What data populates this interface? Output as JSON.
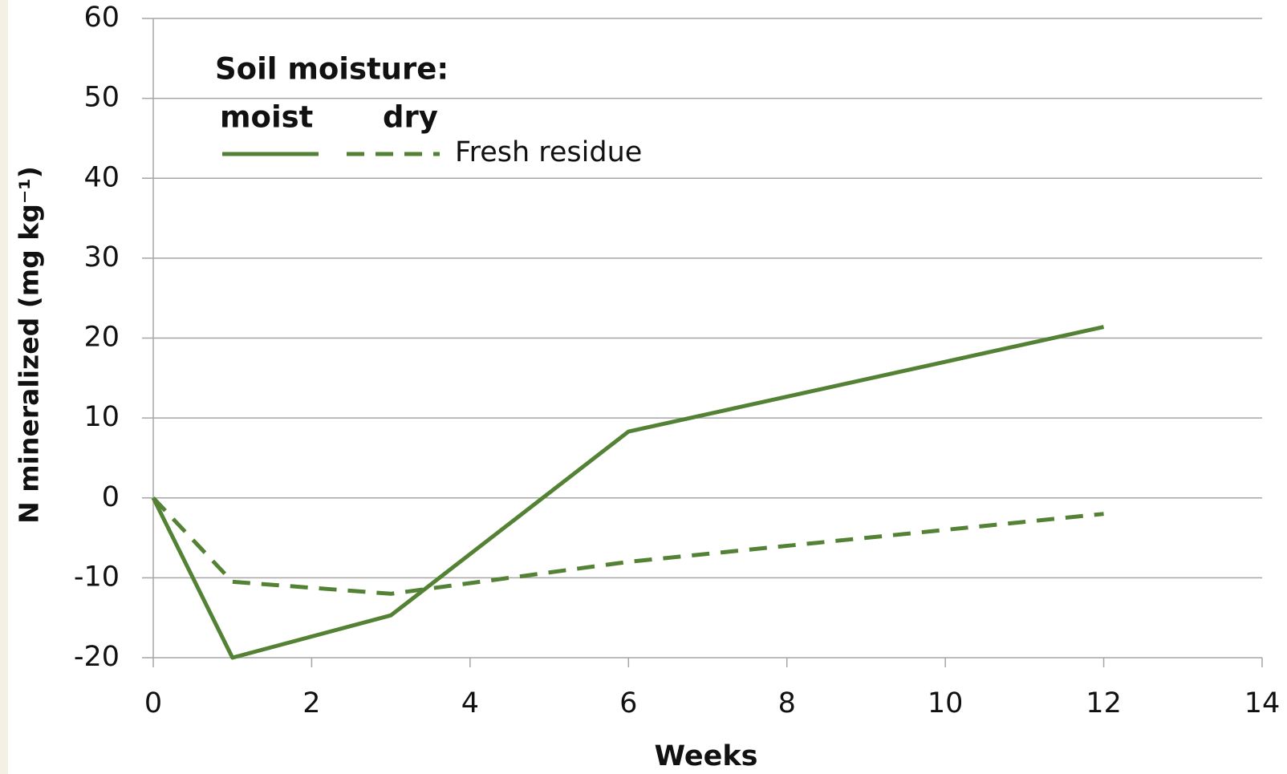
{
  "chart_data": {
    "type": "line",
    "xlabel": "Weeks",
    "ylabel": "N mineralized (mg kg⁻¹)",
    "legend_title": "Soil moisture:",
    "legend_row_label": "Fresh residue",
    "series": [
      {
        "name": "moist",
        "color": "#548235",
        "dash": false,
        "x": [
          0,
          1,
          3,
          6,
          12
        ],
        "values": [
          0,
          -20,
          -14.7,
          8.3,
          21.4
        ]
      },
      {
        "name": "dry",
        "color": "#548235",
        "dash": true,
        "x": [
          0,
          1,
          3,
          6,
          12
        ],
        "values": [
          0,
          -10.5,
          -12,
          -8,
          -2
        ]
      }
    ],
    "xlim": [
      0,
      14
    ],
    "xticks": [
      0,
      2,
      4,
      6,
      8,
      10,
      12,
      14
    ],
    "ylim": [
      -20,
      60
    ],
    "yticks": [
      -20,
      -10,
      0,
      10,
      20,
      30,
      40,
      50,
      60
    ],
    "grid": true
  }
}
